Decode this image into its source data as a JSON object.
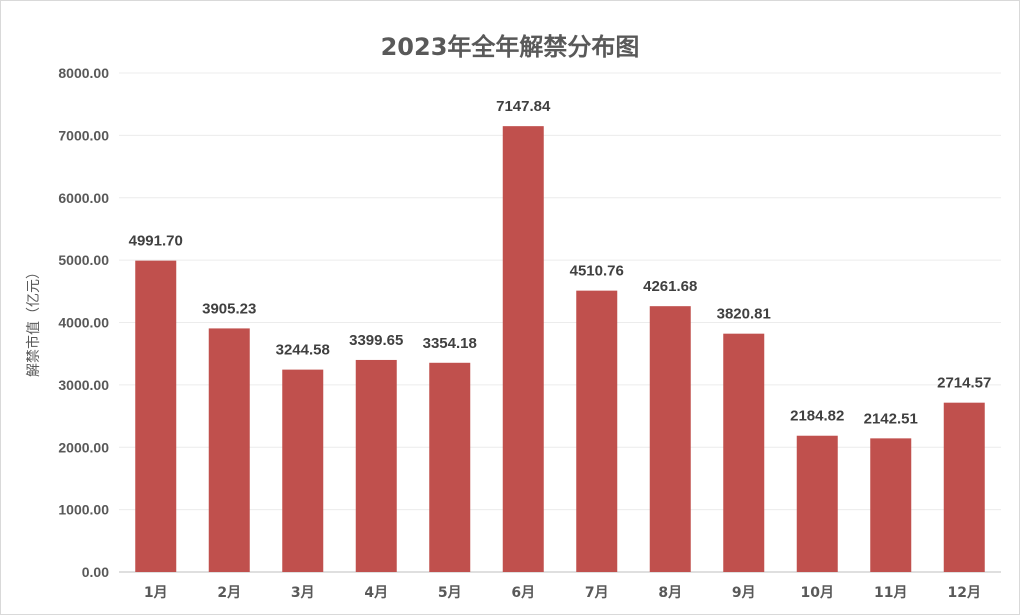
{
  "chart_data": {
    "type": "bar",
    "title": "2023年全年解禁分布图",
    "xlabel": "",
    "ylabel": "解禁市值（亿元）",
    "categories": [
      "1月",
      "2月",
      "3月",
      "4月",
      "5月",
      "6月",
      "7月",
      "8月",
      "9月",
      "10月",
      "11月",
      "12月"
    ],
    "values": [
      4991.7,
      3905.23,
      3244.58,
      3399.65,
      3354.18,
      7147.84,
      4510.76,
      4261.68,
      3820.81,
      2184.82,
      2142.51,
      2714.57
    ],
    "value_labels": [
      "4991.70",
      "3905.23",
      "3244.58",
      "3399.65",
      "3354.18",
      "7147.84",
      "4510.76",
      "4261.68",
      "3820.81",
      "2184.82",
      "2142.51",
      "2714.57"
    ],
    "ylim": [
      0,
      8000
    ],
    "yticks": [
      0,
      1000,
      2000,
      3000,
      4000,
      5000,
      6000,
      7000,
      8000
    ],
    "ytick_labels": [
      "0.00",
      "1000.00",
      "2000.00",
      "3000.00",
      "4000.00",
      "5000.00",
      "6000.00",
      "7000.00",
      "8000.00"
    ],
    "grid": true,
    "legend": "none",
    "bar_color": "#c0504d",
    "grid_color": "#ececec",
    "axis_color": "#bfbfbf"
  }
}
